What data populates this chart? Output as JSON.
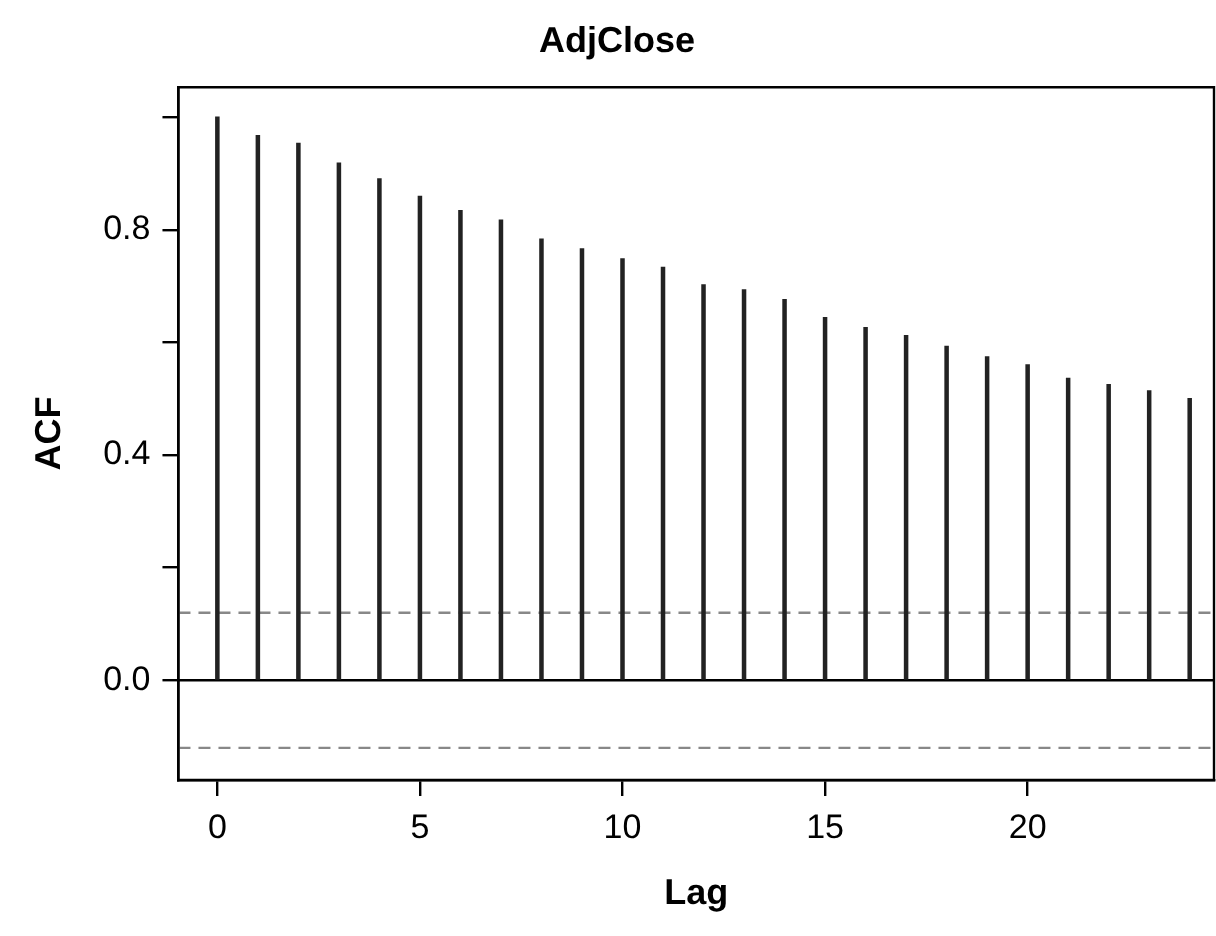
{
  "chart_data": {
    "type": "bar",
    "title": "AdjClose",
    "xlabel": "Lag",
    "ylabel": "ACF",
    "x": [
      0,
      1,
      2,
      3,
      4,
      5,
      6,
      7,
      8,
      9,
      10,
      11,
      12,
      13,
      14,
      15,
      16,
      17,
      18,
      19,
      20,
      21,
      22,
      23,
      24
    ],
    "values": [
      1.0,
      0.967,
      0.953,
      0.918,
      0.89,
      0.859,
      0.834,
      0.817,
      0.783,
      0.766,
      0.748,
      0.733,
      0.702,
      0.693,
      0.676,
      0.644,
      0.626,
      0.612,
      0.593,
      0.574,
      0.56,
      0.536,
      0.525,
      0.514,
      0.5
    ],
    "color": "#222222",
    "xlim": [
      -0.96,
      24.6
    ],
    "xticks": [
      0,
      5,
      10,
      15,
      20
    ],
    "ylim": [
      -0.177,
      1.053
    ],
    "yticks": [
      {
        "value": 0,
        "label": "0.0"
      },
      {
        "value": 0.2,
        "label": null
      },
      {
        "value": 0.4,
        "label": "0.4"
      },
      {
        "value": 0.6,
        "label": null
      },
      {
        "value": 0.8,
        "label": "0.8"
      },
      {
        "value": 1,
        "label": null
      }
    ],
    "ref_lines": [
      {
        "axis": "y",
        "value": 0,
        "color": "#000000",
        "line_style": "solid"
      },
      {
        "axis": "y",
        "value": 0.12,
        "color": "#888888",
        "line_style": "dashed"
      },
      {
        "axis": "y",
        "value": -0.12,
        "color": "#888888",
        "line_style": "dashed"
      }
    ],
    "grid": false
  }
}
